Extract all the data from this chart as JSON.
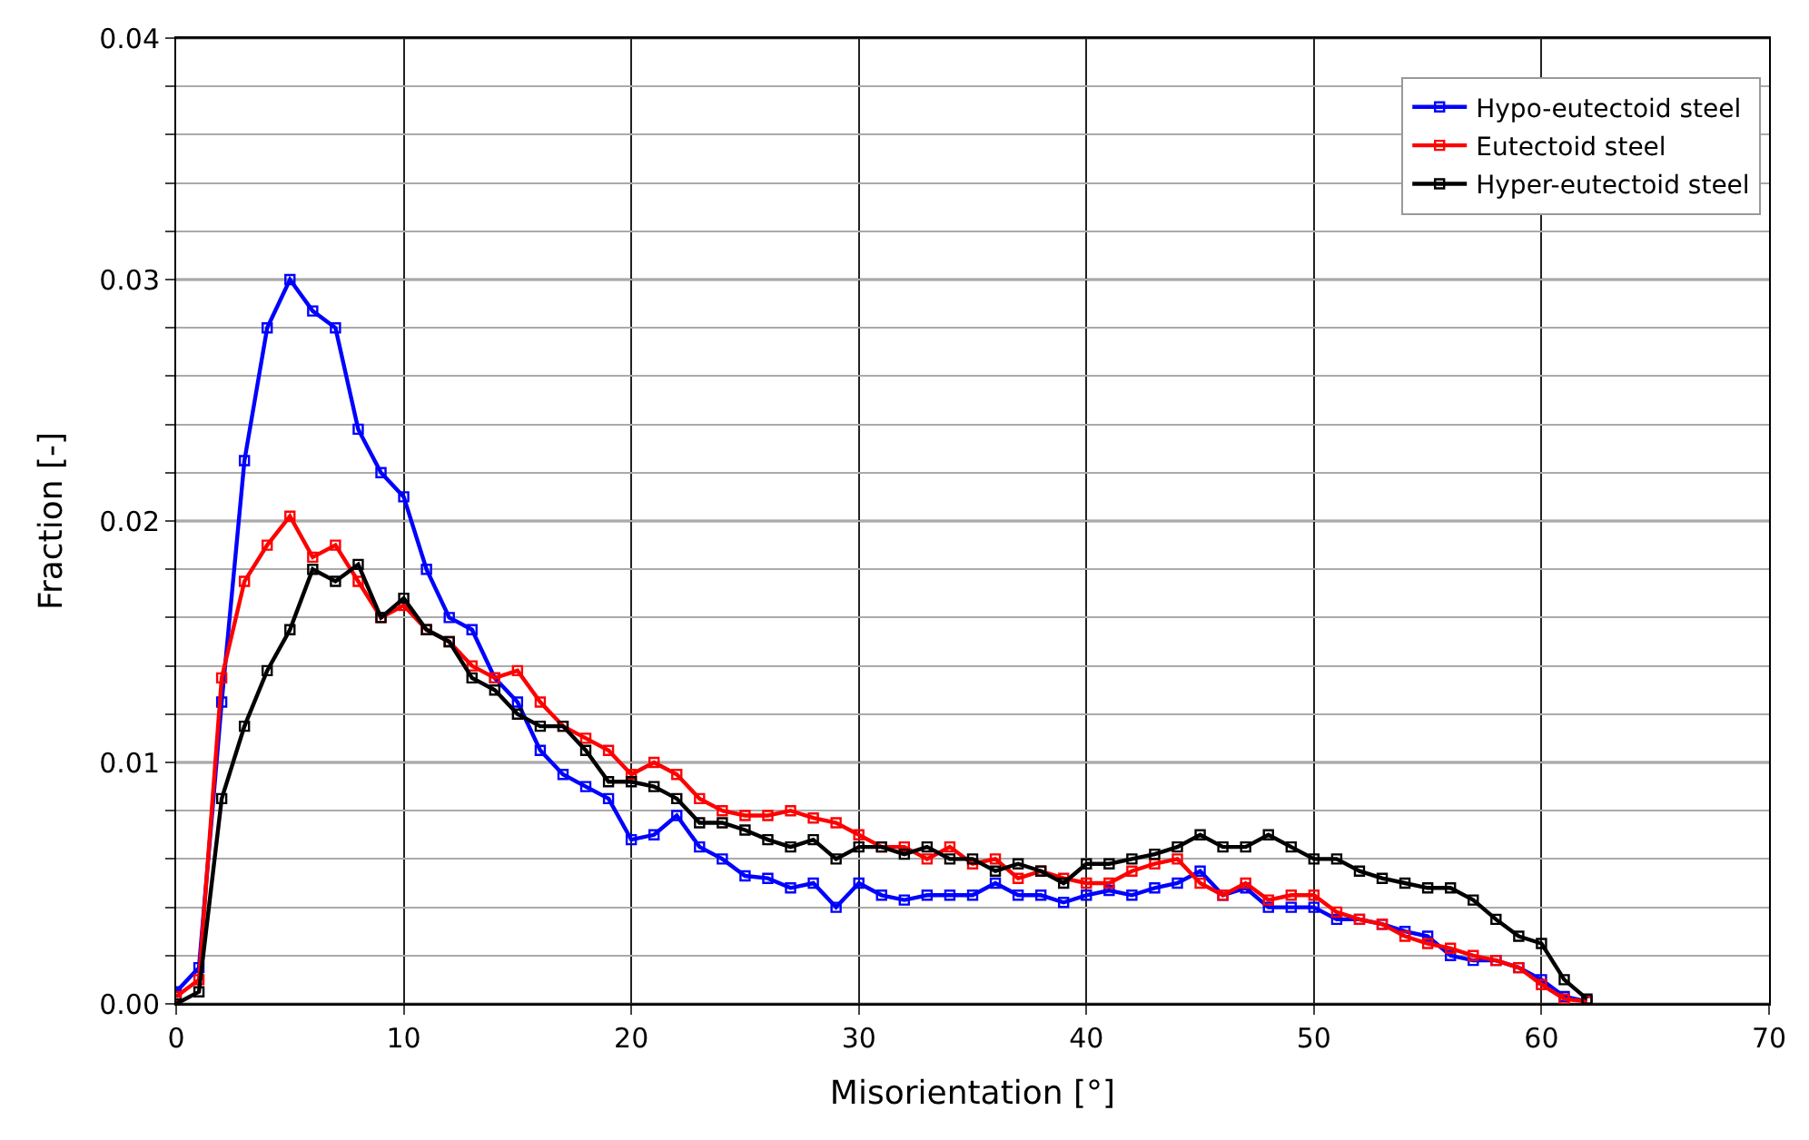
{
  "chart_data": {
    "type": "line",
    "xlabel": "Misorientation [°]",
    "ylabel": "Fraction [-]",
    "x": [
      0,
      1,
      2,
      3,
      4,
      5,
      6,
      7,
      8,
      9,
      10,
      11,
      12,
      13,
      14,
      15,
      16,
      17,
      18,
      19,
      20,
      21,
      22,
      23,
      24,
      25,
      26,
      27,
      28,
      29,
      30,
      31,
      32,
      33,
      34,
      35,
      36,
      37,
      38,
      39,
      40,
      41,
      42,
      43,
      44,
      45,
      46,
      47,
      48,
      49,
      50,
      51,
      52,
      53,
      54,
      55,
      56,
      57,
      58,
      59,
      60,
      61,
      62
    ],
    "series": [
      {
        "name": "Hypo-eutectoid steel",
        "color": "#0000ff",
        "values": [
          0.0005,
          0.0015,
          0.0125,
          0.0225,
          0.028,
          0.03,
          0.0287,
          0.028,
          0.0238,
          0.022,
          0.021,
          0.018,
          0.016,
          0.0155,
          0.0135,
          0.0125,
          0.0105,
          0.0095,
          0.009,
          0.0085,
          0.0068,
          0.007,
          0.0078,
          0.0065,
          0.006,
          0.0053,
          0.0052,
          0.0048,
          0.005,
          0.004,
          0.005,
          0.0045,
          0.0043,
          0.0045,
          0.0045,
          0.0045,
          0.005,
          0.0045,
          0.0045,
          0.0042,
          0.0045,
          0.0047,
          0.0045,
          0.0048,
          0.005,
          0.0055,
          0.0045,
          0.0048,
          0.004,
          0.004,
          0.004,
          0.0035,
          0.0035,
          0.0033,
          0.003,
          0.0028,
          0.002,
          0.0018,
          0.0018,
          0.0015,
          0.001,
          0.0003,
          0.0001
        ]
      },
      {
        "name": "Eutectoid steel",
        "color": "#ff0000",
        "values": [
          0.0003,
          0.001,
          0.0135,
          0.0175,
          0.019,
          0.0202,
          0.0185,
          0.019,
          0.0175,
          0.016,
          0.0165,
          0.0155,
          0.015,
          0.014,
          0.0135,
          0.0138,
          0.0125,
          0.0115,
          0.011,
          0.0105,
          0.0095,
          0.01,
          0.0095,
          0.0085,
          0.008,
          0.0078,
          0.0078,
          0.008,
          0.0077,
          0.0075,
          0.007,
          0.0065,
          0.0065,
          0.006,
          0.0065,
          0.0058,
          0.006,
          0.0052,
          0.0055,
          0.0052,
          0.005,
          0.005,
          0.0055,
          0.0058,
          0.006,
          0.005,
          0.0045,
          0.005,
          0.0043,
          0.0045,
          0.0045,
          0.0038,
          0.0035,
          0.0033,
          0.0028,
          0.0025,
          0.0023,
          0.002,
          0.0018,
          0.0015,
          0.0008,
          0.0002,
          0.0001
        ]
      },
      {
        "name": "Hyper-eutectoid steel",
        "color": "#000000",
        "values": [
          0,
          0.0005,
          0.0085,
          0.0115,
          0.0138,
          0.0155,
          0.018,
          0.0175,
          0.0182,
          0.016,
          0.0168,
          0.0155,
          0.015,
          0.0135,
          0.013,
          0.012,
          0.0115,
          0.0115,
          0.0105,
          0.0092,
          0.0092,
          0.009,
          0.0085,
          0.0075,
          0.0075,
          0.0072,
          0.0068,
          0.0065,
          0.0068,
          0.006,
          0.0065,
          0.0065,
          0.0062,
          0.0065,
          0.006,
          0.006,
          0.0055,
          0.0058,
          0.0055,
          0.005,
          0.0058,
          0.0058,
          0.006,
          0.0062,
          0.0065,
          0.007,
          0.0065,
          0.0065,
          0.007,
          0.0065,
          0.006,
          0.006,
          0.0055,
          0.0052,
          0.005,
          0.0048,
          0.0048,
          0.0043,
          0.0035,
          0.0028,
          0.0025,
          0.001,
          0.0002
        ]
      }
    ],
    "xlim": [
      0,
      70
    ],
    "xticks": [
      0,
      10,
      20,
      30,
      40,
      50,
      60,
      70
    ],
    "ylim": [
      0,
      0.04
    ],
    "yticks": [
      {
        "value": 0,
        "label": "0.00"
      },
      {
        "value": 0.002,
        "label": null
      },
      {
        "value": 0.004,
        "label": null
      },
      {
        "value": 0.006,
        "label": null
      },
      {
        "value": 0.008,
        "label": null
      },
      {
        "value": 0.01,
        "label": "0.01"
      },
      {
        "value": 0.012,
        "label": null
      },
      {
        "value": 0.014,
        "label": null
      },
      {
        "value": 0.016,
        "label": null
      },
      {
        "value": 0.018,
        "label": null
      },
      {
        "value": 0.02,
        "label": "0.02"
      },
      {
        "value": 0.022,
        "label": null
      },
      {
        "value": 0.024,
        "label": null
      },
      {
        "value": 0.026,
        "label": null
      },
      {
        "value": 0.028,
        "label": null
      },
      {
        "value": 0.03,
        "label": "0.03"
      },
      {
        "value": 0.032,
        "label": null
      },
      {
        "value": 0.034,
        "label": null
      },
      {
        "value": 0.036,
        "label": null
      },
      {
        "value": 0.038,
        "label": null
      },
      {
        "value": 0.04,
        "label": "0.04"
      }
    ],
    "grid": true,
    "legend": "top right",
    "marker": "square",
    "line_style": "solid"
  }
}
